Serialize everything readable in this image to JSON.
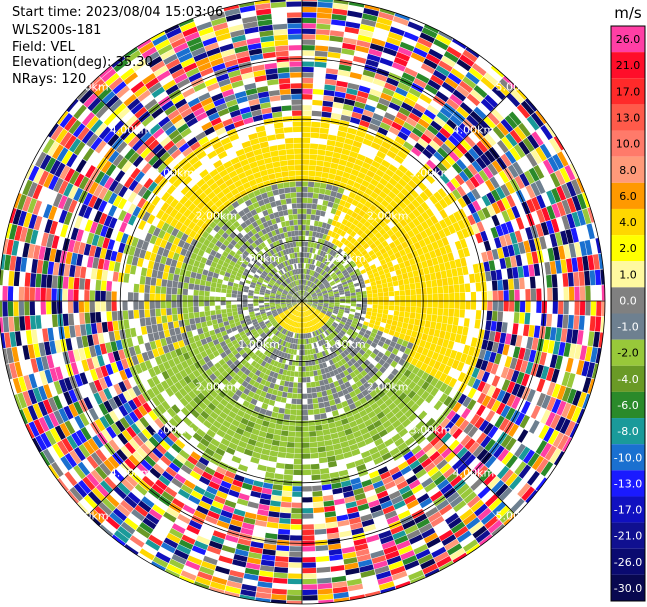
{
  "header": {
    "start_time": "Start time: 2023/08/04 15:03:06",
    "instrument": "WLS200s-181",
    "field": "Field: VEL",
    "elevation": "Elevation(deg): 35.30",
    "nrays": "NRays: 120"
  },
  "chart_data": {
    "type": "heatmap",
    "projection": "polar-ppi",
    "field": "VEL",
    "nrays": 120,
    "range_rings_km": [
      1.0,
      2.0,
      3.0,
      4.0,
      5.0
    ],
    "range_ring_labels": [
      "1.00km",
      "2.00km",
      "3.00km",
      "4.00km",
      "5.00km"
    ],
    "radial_spokes_deg": [
      0,
      45,
      90,
      135,
      180,
      225,
      270,
      315
    ],
    "max_range_km": 5.0,
    "colorbar": {
      "unit": "m/s",
      "tick_labels": [
        "26.0",
        "21.0",
        "17.0",
        "13.0",
        "10.0",
        "8.0",
        "6.0",
        "4.0",
        "2.0",
        "1.0",
        "0.0",
        "-1.0",
        "-2.0",
        "-4.0",
        "-6.0",
        "-8.0",
        "-10.0",
        "-13.0",
        "-17.0",
        "-21.0",
        "-26.0",
        "-30.0"
      ],
      "colors": [
        "#ff3fa5",
        "#ff0e2a",
        "#ff2a2a",
        "#ff5a4a",
        "#ff7a6a",
        "#ff9a7a",
        "#ff9900",
        "#ffd700",
        "#ffff00",
        "#fff9a0",
        "#808080",
        "#6e8090",
        "#98c83a",
        "#6a9a26",
        "#2a8a2a",
        "#1a9a9a",
        "#1a70d0",
        "#1a1aff",
        "#1010c0",
        "#101090",
        "#0a0a70",
        "#080850"
      ]
    },
    "pattern_summary": {
      "center_core": "positive (yellow) near radar",
      "inner_ring_0_1km": "near-zero gray with green patches",
      "ring_1_2km": "gray/green on south-west, yellow on north-east",
      "ring_2_3km": "yellow band north, green band south",
      "beyond_3km": "noisy multicolor clutter"
    }
  }
}
